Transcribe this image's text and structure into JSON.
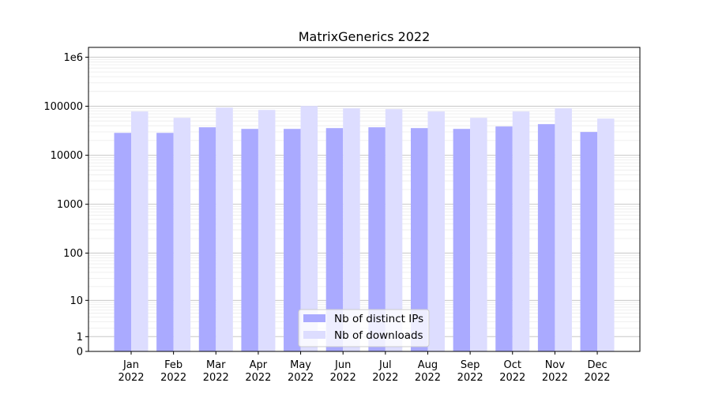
{
  "chart_data": {
    "type": "bar",
    "title": "MatrixGenerics 2022",
    "xlabel": "",
    "ylabel": "",
    "yscale": "log(1+y)",
    "ylim": [
      0,
      1600000
    ],
    "y_ticks": [
      {
        "value": 0,
        "label": "0"
      },
      {
        "value": 1,
        "label": "1"
      },
      {
        "value": 10,
        "label": "10"
      },
      {
        "value": 100,
        "label": "100"
      },
      {
        "value": 1000,
        "label": "1000"
      },
      {
        "value": 10000,
        "label": "10000"
      },
      {
        "value": 100000,
        "label": "100000"
      },
      {
        "value": 1000000,
        "label": "1e6"
      }
    ],
    "categories": [
      [
        "Jan",
        "2022"
      ],
      [
        "Feb",
        "2022"
      ],
      [
        "Mar",
        "2022"
      ],
      [
        "Apr",
        "2022"
      ],
      [
        "May",
        "2022"
      ],
      [
        "Jun",
        "2022"
      ],
      [
        "Jul",
        "2022"
      ],
      [
        "Aug",
        "2022"
      ],
      [
        "Sep",
        "2022"
      ],
      [
        "Oct",
        "2022"
      ],
      [
        "Nov",
        "2022"
      ],
      [
        "Dec",
        "2022"
      ]
    ],
    "series": [
      {
        "name": "Nb of distinct IPs",
        "color": "#aaaaff",
        "values": [
          28600,
          28600,
          37200,
          34500,
          34500,
          35800,
          37200,
          35800,
          34500,
          38600,
          43100,
          29800
        ]
      },
      {
        "name": "Nb of downloads",
        "color": "#ddddff",
        "values": [
          78000,
          58000,
          94000,
          84000,
          101000,
          90500,
          87200,
          78000,
          58000,
          78000,
          90500,
          55900
        ]
      }
    ],
    "grid": true,
    "legend_position": "lower center"
  }
}
